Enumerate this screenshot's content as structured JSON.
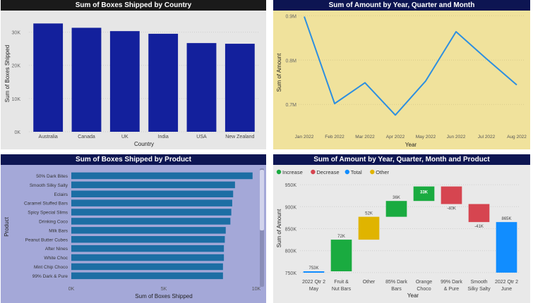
{
  "chart_data": [
    {
      "type": "bar",
      "title": "Sum of Boxes Shipped by Country",
      "xlabel": "Country",
      "ylabel": "Sum of Boxes Shipped",
      "categories": [
        "Australia",
        "Canada",
        "UK",
        "India",
        "USA",
        "New Zealand"
      ],
      "values": [
        32600,
        31300,
        30300,
        29500,
        26700,
        26500
      ],
      "ylim": [
        0,
        35000
      ],
      "yticks": [
        0,
        10000,
        20000,
        30000
      ],
      "ytick_labels": [
        "0K",
        "10K",
        "20K",
        "30K"
      ],
      "colors": {
        "bar": "#13209c",
        "background": "#e6e6e6",
        "title_bg": "#1a1a1a"
      }
    },
    {
      "type": "line",
      "title": "Sum of Amount by Year, Quarter and Month",
      "xlabel": "Year",
      "ylabel": "Sum of Amount",
      "x": [
        "Jan 2022",
        "Feb 2022",
        "Mar 2022",
        "Apr 2022",
        "May 2022",
        "Jun 2022",
        "Jul 2022",
        "Aug 2022"
      ],
      "values": [
        0.898,
        0.702,
        0.749,
        0.676,
        0.753,
        0.864,
        0.803,
        0.744
      ],
      "ylim": [
        0.64,
        0.91
      ],
      "yticks": [
        0.7,
        0.8,
        0.9
      ],
      "ytick_labels": [
        "0.7M",
        "0.8M",
        "0.9M"
      ],
      "colors": {
        "line": "#2d8fe0",
        "background": "#f0e29c",
        "title_bg": "#0d1552"
      }
    },
    {
      "type": "bar",
      "orientation": "horizontal",
      "title": "Sum of Boxes Shipped by Product",
      "xlabel": "Sum of Boxes Shipped",
      "ylabel": "Product",
      "categories": [
        "50% Dark Bites",
        "Smooth Silky Salty",
        "Eclairs",
        "Caramel Stuffed Bars",
        "Spicy Special Slims",
        "Drinking Coco",
        "Milk Bars",
        "Peanut Butter Cubes",
        "After Nines",
        "White Choc",
        "Mint Chip Choco",
        "99% Dark & Pure"
      ],
      "values": [
        9800,
        8850,
        8750,
        8700,
        8650,
        8600,
        8350,
        8300,
        8250,
        8250,
        8200,
        8200
      ],
      "xlim": [
        0,
        10000
      ],
      "xticks": [
        0,
        5000,
        10000
      ],
      "xtick_labels": [
        "0K",
        "5K",
        "10K"
      ],
      "colors": {
        "bar": "#1c6ea4",
        "background": "#a4a8d8",
        "title_bg": "#0d1552"
      }
    },
    {
      "type": "waterfall",
      "title": "Sum of Amount by Year, Quarter, Month and Product",
      "xlabel": "Year",
      "ylabel": "Sum of Amount",
      "legend": [
        {
          "label": "Increase",
          "color": "#1aab40"
        },
        {
          "label": "Decrease",
          "color": "#d64550"
        },
        {
          "label": "Total",
          "color": "#118dff"
        },
        {
          "label": "Other",
          "color": "#e0b400"
        }
      ],
      "steps": [
        {
          "label": [
            "2022 Qtr 2",
            "May"
          ],
          "kind": "total",
          "start": 750,
          "end": 753,
          "value_label": "753K"
        },
        {
          "label": [
            "Fruit &",
            "Nut Bars"
          ],
          "kind": "increase",
          "start": 753,
          "end": 825,
          "value_label": "72K"
        },
        {
          "label": [
            "Other"
          ],
          "kind": "other",
          "start": 825,
          "end": 877,
          "value_label": "52K"
        },
        {
          "label": [
            "85% Dark",
            "Bars"
          ],
          "kind": "increase",
          "start": 877,
          "end": 913,
          "value_label": "36K"
        },
        {
          "label": [
            "Orange",
            "Choco"
          ],
          "kind": "increase",
          "start": 913,
          "end": 946,
          "value_label": "33K"
        },
        {
          "label": [
            "99% Dark",
            "& Pure"
          ],
          "kind": "decrease",
          "start": 946,
          "end": 906,
          "value_label": "-40K"
        },
        {
          "label": [
            "Smooth",
            "Silky Salty"
          ],
          "kind": "decrease",
          "start": 906,
          "end": 865,
          "value_label": "-41K"
        },
        {
          "label": [
            "2022 Qtr 2",
            "June"
          ],
          "kind": "total",
          "start": 750,
          "end": 865,
          "value_label": "865K"
        }
      ],
      "ylim": [
        745,
        955
      ],
      "yticks": [
        750,
        800,
        850,
        900,
        950
      ],
      "ytick_labels": [
        "750K",
        "800K",
        "850K",
        "900K",
        "950K"
      ],
      "colors": {
        "background": "#e9e9e9",
        "title_bg": "#0d1552"
      }
    }
  ]
}
